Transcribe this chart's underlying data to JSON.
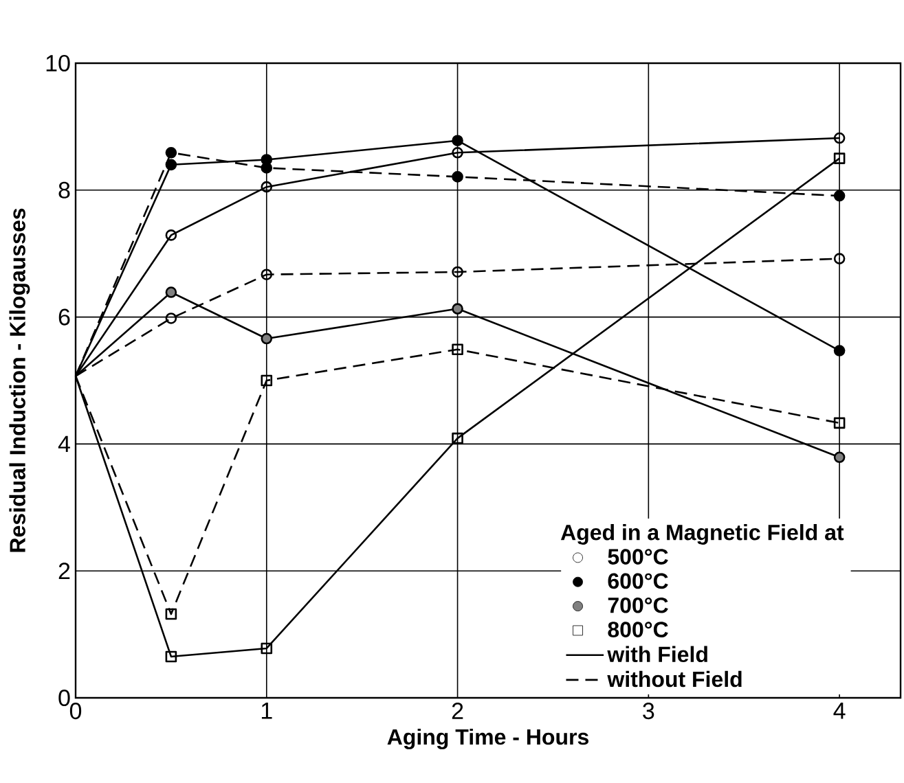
{
  "chart_data": {
    "type": "line",
    "xlabel": "Aging Time - Hours",
    "ylabel": "Residual Induction - Kilogausses",
    "legend_title": "Aged in a Magnetic Field at",
    "x": [
      0,
      0.5,
      1,
      2,
      4
    ],
    "xlim": [
      0,
      4.32
    ],
    "xticks": [
      0,
      1,
      2,
      3,
      4
    ],
    "ylim": [
      0,
      10
    ],
    "yticks": [
      0,
      2,
      4,
      6,
      8,
      10
    ],
    "grid": true,
    "legend": "bottom right",
    "annotations": [
      "with Field",
      "without Field"
    ],
    "series": [
      {
        "name": "500°C",
        "color": "#000000",
        "marker": "circle",
        "line_style": "solid",
        "values": [
          5.07,
          7.29,
          8.05,
          8.59,
          8.82
        ]
      },
      {
        "name": "600°C",
        "color": "#000000",
        "marker": "circle",
        "line_style": "solid",
        "values": [
          5.07,
          8.4,
          8.48,
          8.78,
          5.47
        ]
      },
      {
        "name": "700°C",
        "color": "#000000",
        "marker": "circle",
        "line_style": "solid",
        "values": [
          5.07,
          6.39,
          5.66,
          6.13,
          3.79
        ]
      },
      {
        "name": "800°C",
        "color": "#000000",
        "marker": "square",
        "line_style": "solid",
        "values": [
          5.07,
          0.65,
          0.78,
          4.09,
          8.5
        ]
      },
      {
        "color": "#000000",
        "marker": "circle",
        "line_style": "dashed",
        "values": [
          5.07,
          5.98,
          6.67,
          6.71,
          6.92
        ]
      },
      {
        "color": "#000000",
        "marker": "circle",
        "line_style": "dashed",
        "values": [
          5.07,
          8.59,
          8.35,
          8.21,
          7.91
        ]
      },
      {
        "color": "#000000",
        "marker": "square",
        "line_style": "dashed",
        "values": [
          5.07,
          1.32,
          5.0,
          5.49,
          4.33
        ]
      }
    ]
  }
}
